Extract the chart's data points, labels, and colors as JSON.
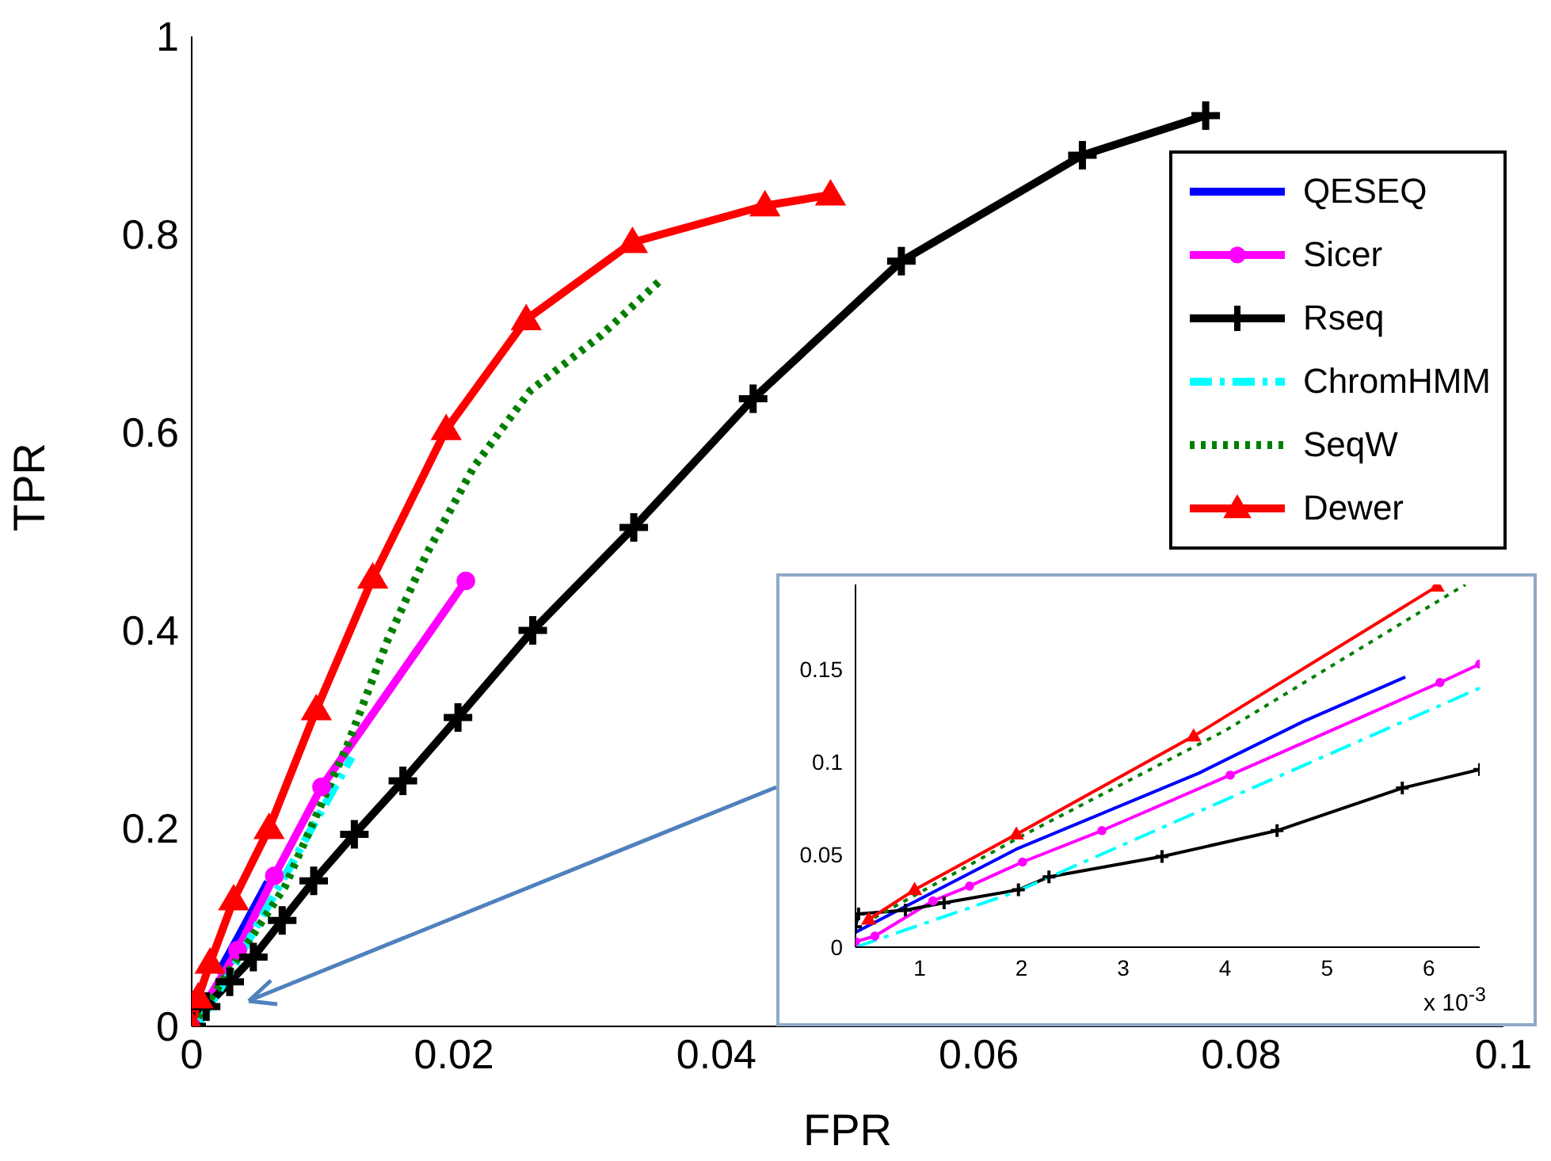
{
  "chart_data": [
    {
      "type": "line",
      "xlabel": "FPR",
      "ylabel": "TPR",
      "xlim": [
        0,
        0.1
      ],
      "ylim": [
        0,
        1
      ],
      "xticks": [
        0,
        0.02,
        0.04,
        0.06,
        0.08,
        0.1
      ],
      "yticks": [
        0,
        0.2,
        0.4,
        0.6,
        0.8,
        1
      ],
      "legend": "top right",
      "series": [
        {
          "name": "QESEQ",
          "color": "#0000ff",
          "line_style": "solid",
          "marker": "none",
          "x": [
            0.002,
            0.0037,
            0.0058
          ],
          "values": [
            0.053,
            0.094,
            0.146
          ]
        },
        {
          "name": "Sicer",
          "color": "#ff00ff",
          "line_style": "solid",
          "marker": "circle",
          "x": [
            0,
            0.0035,
            0.0063,
            0.0099,
            0.0209
          ],
          "values": [
            0,
            0.077,
            0.152,
            0.242,
            0.45
          ]
        },
        {
          "name": "Rseq",
          "color": "#000000",
          "line_style": "solid",
          "marker": "cross",
          "x": [
            0,
            0.0011,
            0.0029,
            0.0047,
            0.0069,
            0.0093,
            0.0124,
            0.0161,
            0.0203,
            0.026,
            0.0337,
            0.0428,
            0.0541,
            0.0679,
            0.0773
          ],
          "values": [
            0,
            0.02,
            0.045,
            0.07,
            0.107,
            0.147,
            0.194,
            0.248,
            0.312,
            0.4,
            0.504,
            0.634,
            0.773,
            0.88,
            0.92
          ]
        },
        {
          "name": "ChromHMM",
          "color": "#00ffff",
          "line_style": "dashed",
          "marker": "none",
          "x": [
            0.0004,
            0.0032,
            0.0122
          ],
          "values": [
            0,
            0.06,
            0.272
          ]
        },
        {
          "name": "SeqW",
          "color": "#007f00",
          "line_style": "dotted",
          "marker": "none",
          "x": [
            0,
            0.0023,
            0.0071,
            0.0119,
            0.0149,
            0.0179,
            0.0215,
            0.0258,
            0.0312,
            0.0356
          ],
          "values": [
            0,
            0.045,
            0.141,
            0.285,
            0.389,
            0.477,
            0.565,
            0.642,
            0.698,
            0.752
          ]
        },
        {
          "name": "Dewer",
          "color": "#ff0000",
          "line_style": "solid",
          "marker": "triangle",
          "x": [
            0,
            0.0005,
            0.0014,
            0.0032,
            0.0059,
            0.0095,
            0.0138,
            0.0194,
            0.0255,
            0.0336,
            0.0437,
            0.0487
          ],
          "values": [
            0,
            0.029,
            0.064,
            0.128,
            0.2,
            0.32,
            0.453,
            0.603,
            0.714,
            0.792,
            0.829,
            0.84
          ]
        }
      ]
    },
    {
      "type": "line",
      "xlim": [
        0.37,
        6.5
      ],
      "ylim": [
        0,
        0.196
      ],
      "xticks": [
        1,
        2,
        3,
        4,
        5,
        6
      ],
      "yticks": [
        0,
        0.05,
        0.1,
        0.15
      ],
      "annotations": [
        "x 10$^{-3}$"
      ],
      "series": [
        {
          "color": "#0000ff",
          "line_style": "solid",
          "marker": "none",
          "x": [
            0.37,
            1.95,
            3.74,
            4.77,
            5.77
          ],
          "values": [
            0.008,
            0.053,
            0.094,
            0.122,
            0.146
          ]
        },
        {
          "color": "#ff00ff",
          "line_style": "solid",
          "marker": "circle",
          "x": [
            0.37,
            0.56,
            1.13,
            1.49,
            2.01,
            2.79,
            4.05,
            6.11,
            6.5
          ],
          "values": [
            0.003,
            0.006,
            0.025,
            0.033,
            0.046,
            0.063,
            0.093,
            0.143,
            0.153
          ]
        },
        {
          "color": "#000000",
          "line_style": "solid",
          "marker": "cross",
          "x": [
            0.37,
            0.4,
            0.86,
            1.24,
            1.97,
            2.27,
            3.38,
            4.51,
            5.74,
            6.5
          ],
          "values": [
            0.011,
            0.018,
            0.02,
            0.024,
            0.031,
            0.038,
            0.049,
            0.063,
            0.086,
            0.096
          ]
        },
        {
          "color": "#00ffff",
          "line_style": "dashed",
          "marker": "none",
          "x": [
            0.37,
            1.95,
            6.5
          ],
          "values": [
            0,
            0.03,
            0.14
          ]
        },
        {
          "color": "#007f00",
          "line_style": "dotted",
          "marker": "none",
          "x": [
            0.46,
            2,
            4,
            6.36
          ],
          "values": [
            0.013,
            0.06,
            0.117,
            0.196
          ]
        },
        {
          "color": "#ff0000",
          "line_style": "solid",
          "marker": "triangle",
          "x": [
            0.5,
            0.95,
            1.95,
            3.69,
            6.08
          ],
          "values": [
            0.015,
            0.031,
            0.061,
            0.114,
            0.195
          ]
        }
      ]
    }
  ]
}
